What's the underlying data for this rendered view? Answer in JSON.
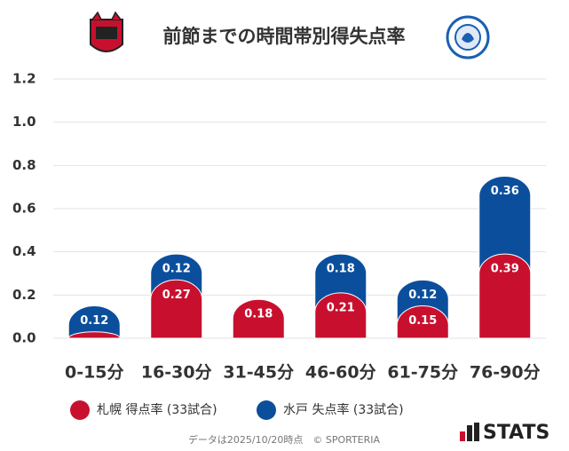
{
  "chart_data": {
    "type": "stacked_bar",
    "title": "前節までの時間帯別得失点率",
    "categories": [
      "0-15分",
      "16-30分",
      "31-45分",
      "46-60分",
      "61-75分",
      "76-90分"
    ],
    "series": [
      {
        "name": "札幌 得点率 (33試合)",
        "color": "#c8102e",
        "values": [
          0.03,
          0.27,
          0.18,
          0.21,
          0.15,
          0.39
        ]
      },
      {
        "name": "水戸 失点率 (33試合)",
        "color": "#0b4f9c",
        "values": [
          0.12,
          0.12,
          0,
          0.18,
          0.12,
          0.36
        ]
      }
    ],
    "ylim": [
      0,
      1.2
    ],
    "yticks": [
      {
        "value": 0,
        "label": "0.0"
      },
      0.2,
      0.4,
      0.6,
      0.8,
      {
        "value": 1,
        "label": "1.0"
      },
      1.2
    ],
    "grid": true,
    "footnote": "データは2025/10/20時点　© SPORTERIA",
    "logo_text": "STATS"
  }
}
